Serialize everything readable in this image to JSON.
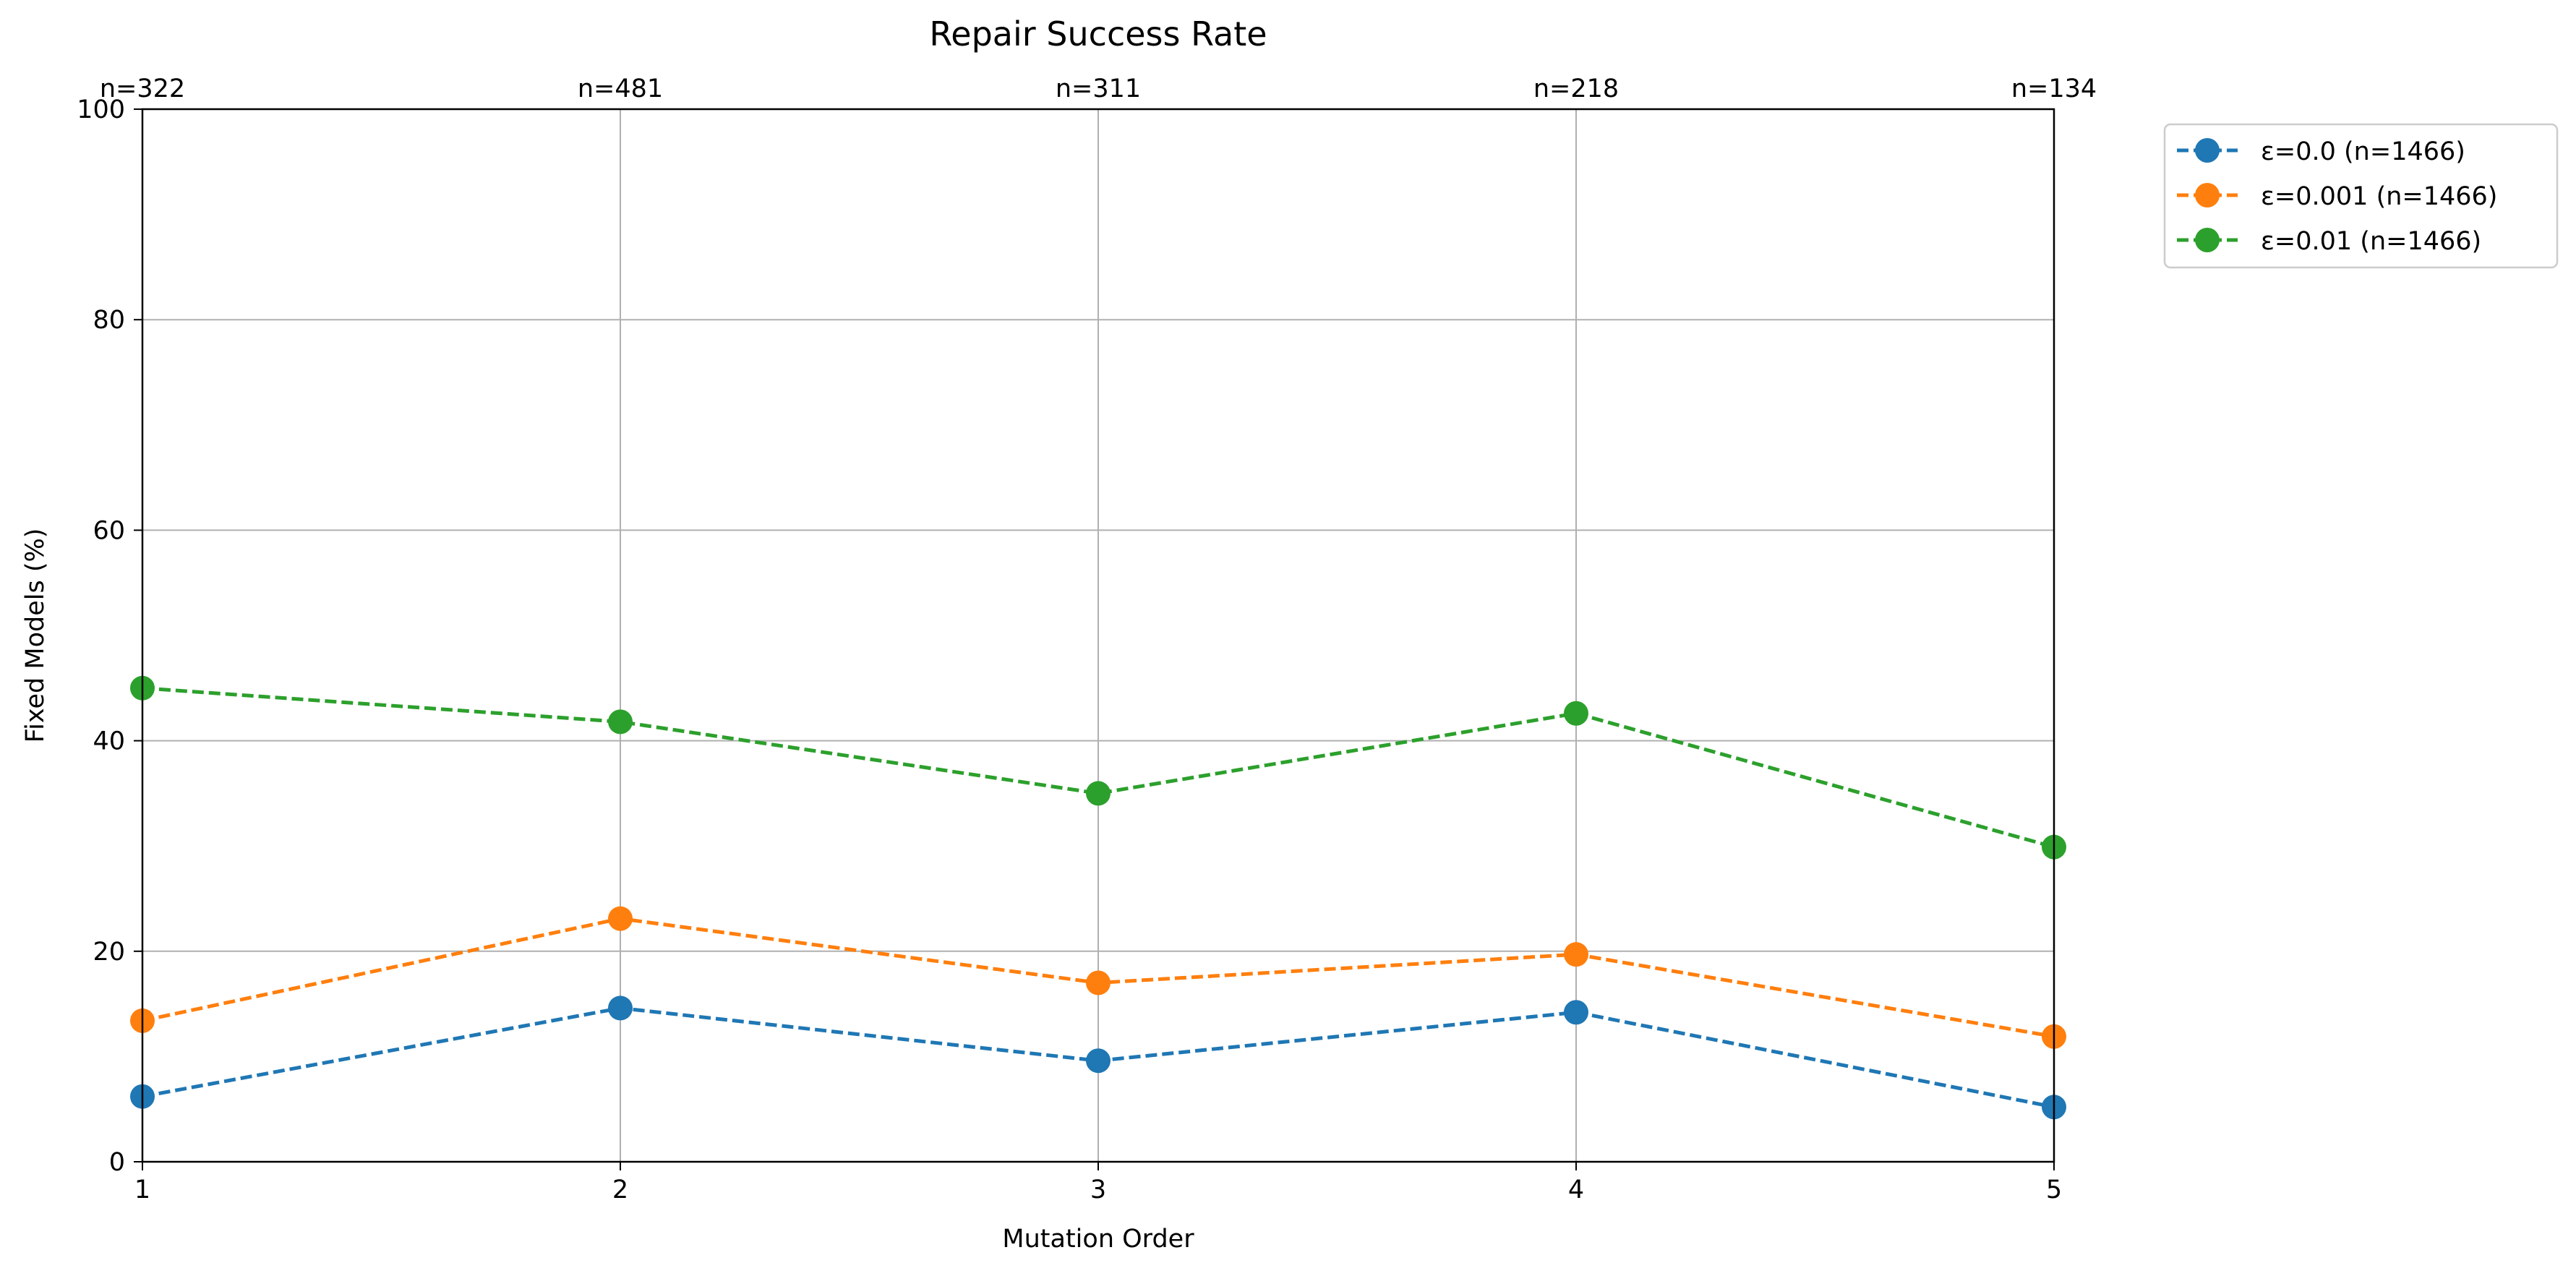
{
  "chart_data": {
    "type": "line",
    "title": "Repair Success Rate",
    "xlabel": "Mutation Order",
    "ylabel": "Fixed Models (%)",
    "x": [
      1,
      2,
      3,
      4,
      5
    ],
    "x_tick_labels": [
      "1",
      "2",
      "3",
      "4",
      "5"
    ],
    "y_ticks": [
      0,
      20,
      40,
      60,
      80,
      100
    ],
    "y_tick_labels": [
      "0",
      "20",
      "40",
      "60",
      "80",
      "100"
    ],
    "xlim": [
      1,
      5
    ],
    "ylim": [
      0,
      100
    ],
    "grid": true,
    "legend_position": "outside-top-right",
    "top_labels": [
      "n=322",
      "n=481",
      "n=311",
      "n=218",
      "n=134"
    ],
    "series": [
      {
        "name": "ε=0.0 (n=1466)",
        "color": "#1f77b4",
        "line_style": "dashed",
        "marker": "circle",
        "values": [
          6.2,
          14.6,
          9.6,
          14.2,
          5.2
        ]
      },
      {
        "name": "ε=0.001 (n=1466)",
        "color": "#ff7f0e",
        "line_style": "dashed",
        "marker": "circle",
        "values": [
          13.4,
          23.1,
          17.0,
          19.7,
          11.9
        ]
      },
      {
        "name": "ε=0.01 (n=1466)",
        "color": "#2ca02c",
        "line_style": "dashed",
        "marker": "circle",
        "values": [
          45.0,
          41.8,
          35.0,
          42.6,
          29.9
        ]
      }
    ]
  }
}
